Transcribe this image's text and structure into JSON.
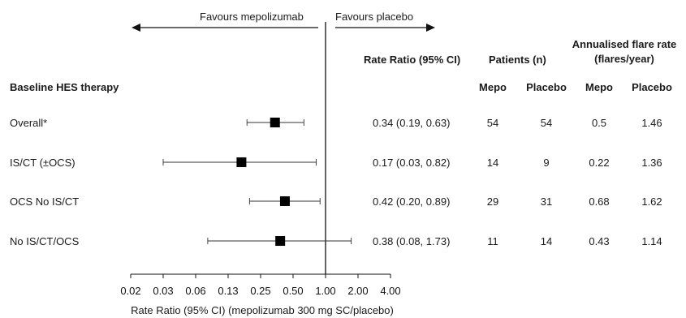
{
  "directions": {
    "left": "Favours mepolizumab",
    "right": "Favours placebo"
  },
  "headers": {
    "subgroup": "Baseline HES therapy",
    "rate_ratio": "Rate Ratio (95% CI)",
    "patients": "Patients (n)",
    "flare_rate_line1": "Annualised flare rate",
    "flare_rate_line2": "(flares/year)",
    "mepo": "Mepo",
    "placebo": "Placebo"
  },
  "rows": [
    {
      "label": "Overall*",
      "ci_text": "0.34 (0.19, 0.63)",
      "patients_mepo": "54",
      "patients_placebo": "54",
      "rate_mepo": "0.5",
      "rate_placebo": "1.46"
    },
    {
      "label": "IS/CT (±OCS)",
      "ci_text": "0.17 (0.03, 0.82)",
      "patients_mepo": "14",
      "patients_placebo": "9",
      "rate_mepo": "0.22",
      "rate_placebo": "1.36"
    },
    {
      "label": "OCS No IS/CT",
      "ci_text": "0.42 (0.20, 0.89)",
      "patients_mepo": "29",
      "patients_placebo": "31",
      "rate_mepo": "0.68",
      "rate_placebo": "1.62"
    },
    {
      "label": "No IS/CT/OCS",
      "ci_text": "0.38 (0.08, 1.73)",
      "patients_mepo": "11",
      "patients_placebo": "14",
      "rate_mepo": "0.43",
      "rate_placebo": "1.14"
    }
  ],
  "chart_data": {
    "type": "forest",
    "xlabel": "Rate Ratio (95% CI) (mepolizumab 300 mg SC/placebo)",
    "xscale": "log",
    "xlim": [
      0.02,
      4.0
    ],
    "reference_line": 1.0,
    "ticks": [
      0.02,
      0.03,
      0.06,
      0.13,
      0.25,
      0.5,
      1.0,
      2.0,
      4.0
    ],
    "tick_labels": [
      "0.02",
      "0.03",
      "0.06",
      "0.13",
      "0.25",
      "0.50",
      "1.00",
      "2.00",
      "4.00"
    ],
    "categories": [
      "Overall*",
      "IS/CT (±OCS)",
      "OCS No IS/CT",
      "No IS/CT/OCS"
    ],
    "estimates": [
      0.34,
      0.17,
      0.42,
      0.38
    ],
    "ci_lower": [
      0.19,
      0.03,
      0.2,
      0.08
    ],
    "ci_upper": [
      0.63,
      0.82,
      0.89,
      1.73
    ]
  }
}
